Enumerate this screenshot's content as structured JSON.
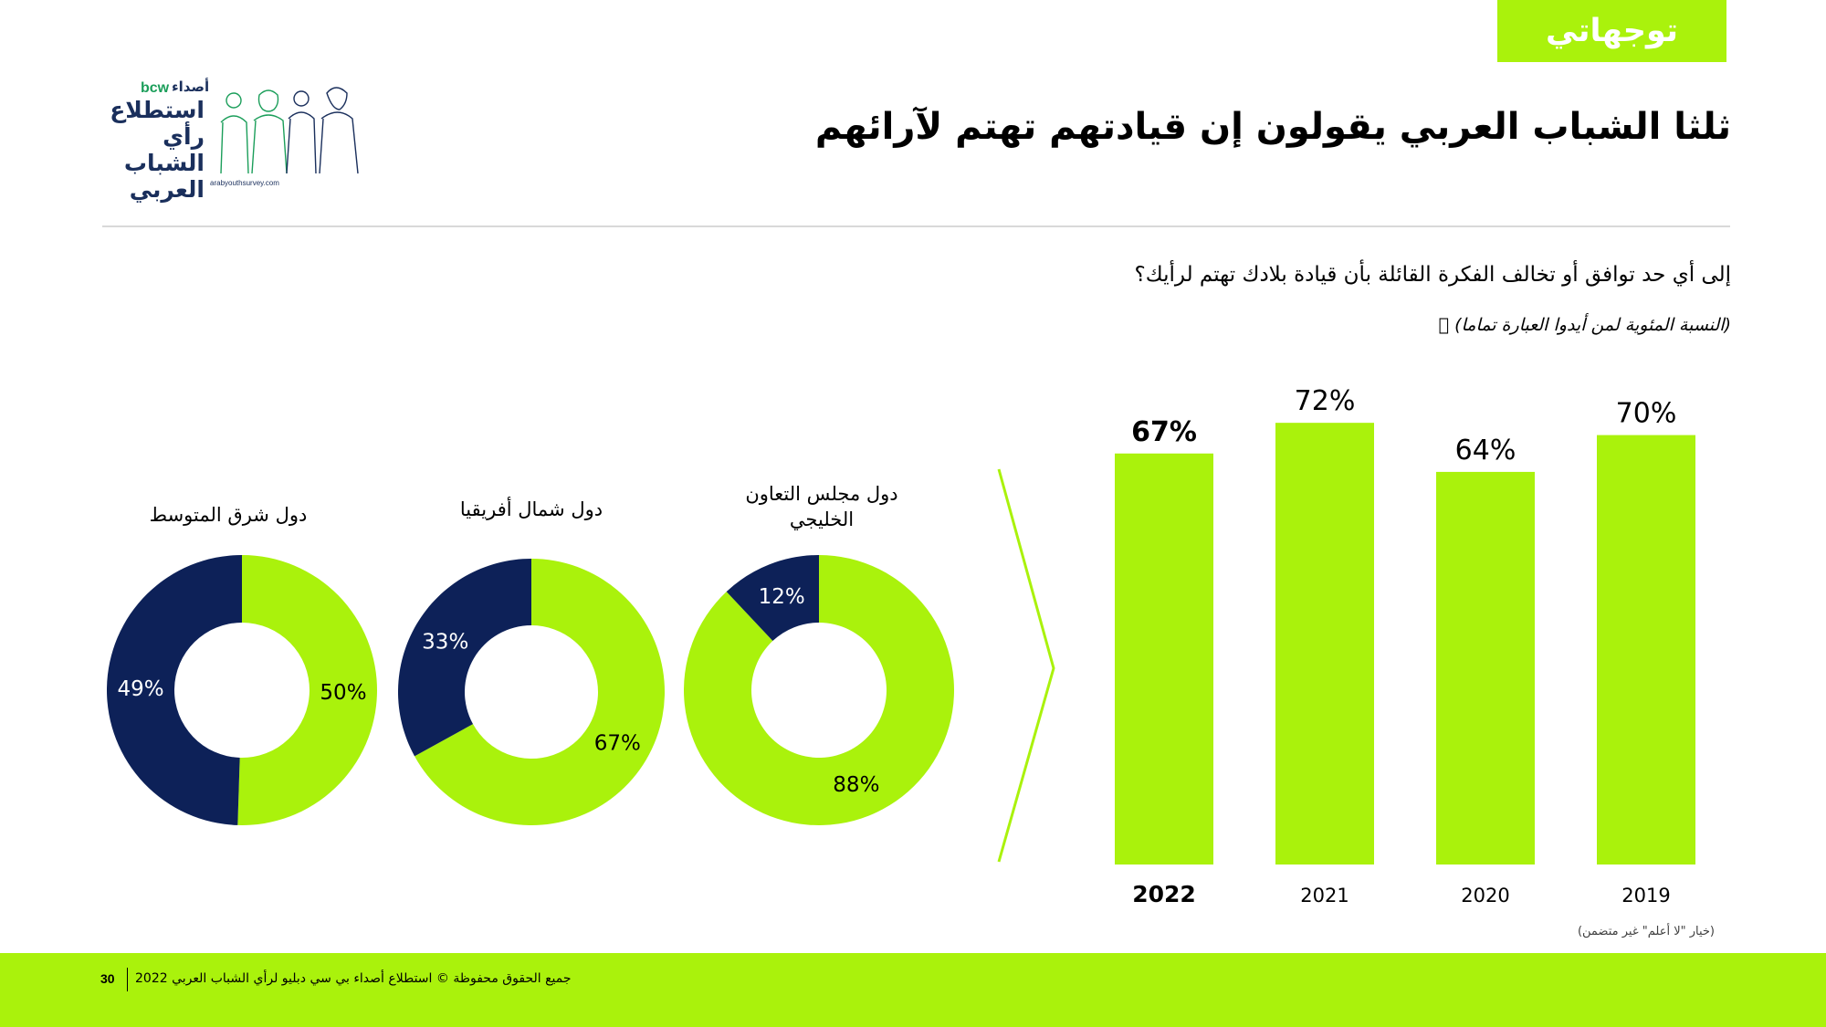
{
  "header": {
    "tag": "توجهاتي",
    "title": "ثلثا الشباب العربي يقولون إن قيادتهم تهتم لآرائهم"
  },
  "logo": {
    "brand": "bcw",
    "brand_ar": "أصداء",
    "name_lines": [
      "استطلاع",
      "رأي الشباب",
      "العربي"
    ],
    "url": "arabyouthsurvey.com"
  },
  "question": "إلى أي حد توافق أو تخالف الفكرة القائلة بأن قيادة بلادك تهتم لرأيك؟",
  "subnote": "(النسبة المئوية لمن أيدوا العبارة تماما) ⃞",
  "footnote": "(خيار \"لا أعلم\" غير متضمن)",
  "footer": {
    "page": "30",
    "text": "جميع الحقوق محفوظة © استطلاع أصداء بي سي دبليو لرأي الشباب العربي 2022"
  },
  "colors": {
    "green": "#aaf20c",
    "navy": "#0d2158",
    "white": "#ffffff"
  },
  "chart_data": [
    {
      "type": "bar",
      "categories": [
        "2022",
        "2021",
        "2020",
        "2019"
      ],
      "values": [
        67,
        72,
        64,
        70
      ],
      "value_labels": [
        "67%",
        "72%",
        "64%",
        "70%"
      ],
      "highlight_category": "2022",
      "title": "",
      "xlabel": "",
      "ylabel": ""
    },
    {
      "type": "pie",
      "variant": "donut",
      "region": "دول مجلس التعاون الخليجي",
      "region_lines": [
        "دول مجلس التعاون",
        "الخليجي"
      ],
      "slices": [
        {
          "value": 88,
          "label": "88%",
          "color": "#aaf20c"
        },
        {
          "value": 12,
          "label": "12%",
          "color": "#0d2158"
        }
      ]
    },
    {
      "type": "pie",
      "variant": "donut",
      "region": "دول شمال أفريقيا",
      "region_lines": [
        "دول شمال أفريقيا"
      ],
      "slices": [
        {
          "value": 67,
          "label": "67%",
          "color": "#aaf20c"
        },
        {
          "value": 33,
          "label": "33%",
          "color": "#0d2158"
        }
      ]
    },
    {
      "type": "pie",
      "variant": "donut",
      "region": "دول شرق المتوسط",
      "region_lines": [
        "دول شرق المتوسط"
      ],
      "slices": [
        {
          "value": 50,
          "label": "50%",
          "color": "#aaf20c"
        },
        {
          "value": 49,
          "label": "49%",
          "color": "#0d2158"
        }
      ]
    }
  ]
}
